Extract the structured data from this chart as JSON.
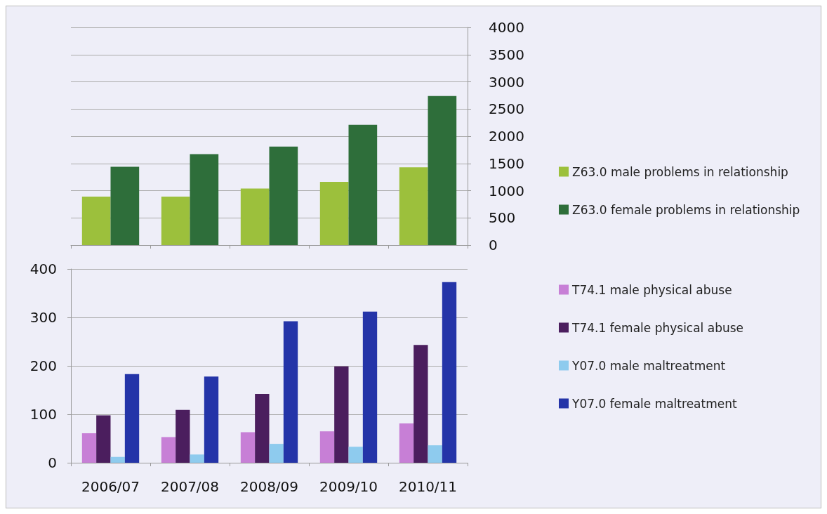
{
  "chart_data": [
    {
      "type": "bar",
      "categories": [
        "2006/07",
        "2007/08",
        "2008/09",
        "2009/10",
        "2010/11"
      ],
      "series": [
        {
          "name": "Z63.0 male problems in relationship",
          "color": "#9cc03c",
          "values": [
            890,
            890,
            1040,
            1160,
            1430
          ]
        },
        {
          "name": "Z63.0 female problems in relationship",
          "color": "#2e6e3a",
          "values": [
            1440,
            1670,
            1810,
            2210,
            2740
          ]
        }
      ],
      "ylim": [
        0,
        4000
      ],
      "yticks": [
        0,
        500,
        1000,
        1500,
        2000,
        2500,
        3000,
        3500,
        4000
      ],
      "tick_labels": "y",
      "grid": true,
      "legend": "right"
    },
    {
      "type": "bar",
      "categories": [
        "2006/07",
        "2007/08",
        "2008/09",
        "2009/10",
        "2010/11"
      ],
      "series": [
        {
          "name": "T74.1 male physical abuse",
          "color": "#c77fd6",
          "values": [
            61,
            53,
            63,
            65,
            81
          ]
        },
        {
          "name": "T74.1 female physical abuse",
          "color": "#4b1e5e",
          "values": [
            98,
            109,
            142,
            199,
            243
          ]
        },
        {
          "name": "Y07.0 male maltreatment",
          "color": "#8ecbee",
          "values": [
            12,
            17,
            39,
            33,
            36
          ]
        },
        {
          "name": "Y07.0 female maltreatment",
          "color": "#2434a8",
          "values": [
            183,
            178,
            292,
            312,
            373
          ]
        }
      ],
      "ylim": [
        0,
        400
      ],
      "yticks": [
        0,
        100,
        200,
        300,
        400
      ],
      "grid": true,
      "legend": "right"
    }
  ]
}
